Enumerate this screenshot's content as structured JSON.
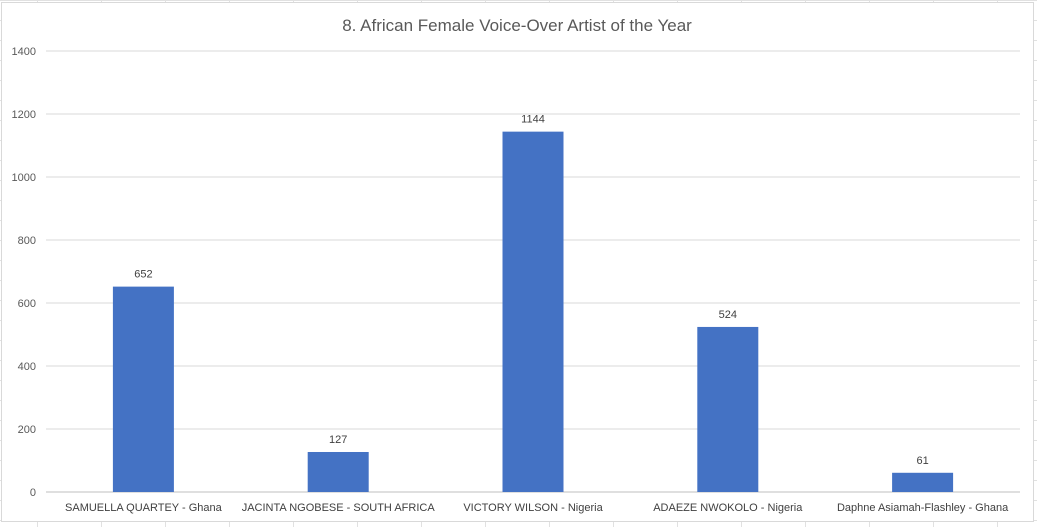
{
  "chart_data": {
    "type": "bar",
    "title": "8. African Female Voice-Over Artist of the Year",
    "categories": [
      "SAMUELLA QUARTEY - Ghana",
      "JACINTA NGOBESE - SOUTH AFRICA",
      "VICTORY WILSON - Nigeria",
      "ADAEZE NWOKOLO - Nigeria",
      "Daphne Asiamah-Flashley - Ghana"
    ],
    "values": [
      652,
      127,
      1144,
      524,
      61
    ],
    "ylim": [
      0,
      1400
    ],
    "yticks": [
      0,
      200,
      400,
      600,
      800,
      1000,
      1200,
      1400
    ],
    "grid": true,
    "data_labels": true,
    "bar_color": "#4472c4"
  }
}
